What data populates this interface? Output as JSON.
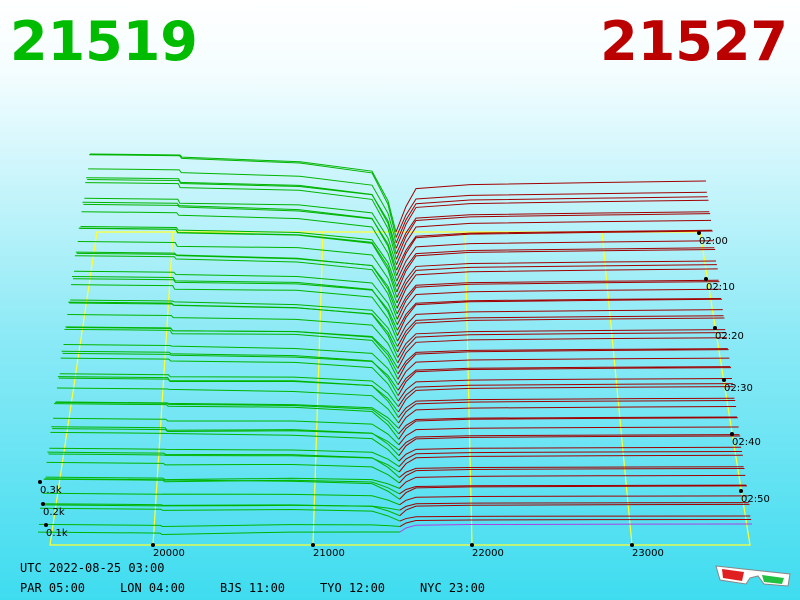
{
  "header": {
    "bid": "21519",
    "ask": "21527"
  },
  "price_axis": [
    "20000",
    "21000",
    "22000",
    "23000"
  ],
  "depth_axis": [
    "0.3k",
    "0.2k",
    "0.1k"
  ],
  "time_axis": [
    "02:00",
    "02:10",
    "02:20",
    "02:30",
    "02:40",
    "02:50"
  ],
  "footer": {
    "utc": "UTC 2022-08-25 03:00",
    "zones": [
      "PAR 05:00",
      "LON 04:00",
      "BJS 11:00",
      "TYO 12:00",
      "NYC 23:00"
    ]
  }
}
